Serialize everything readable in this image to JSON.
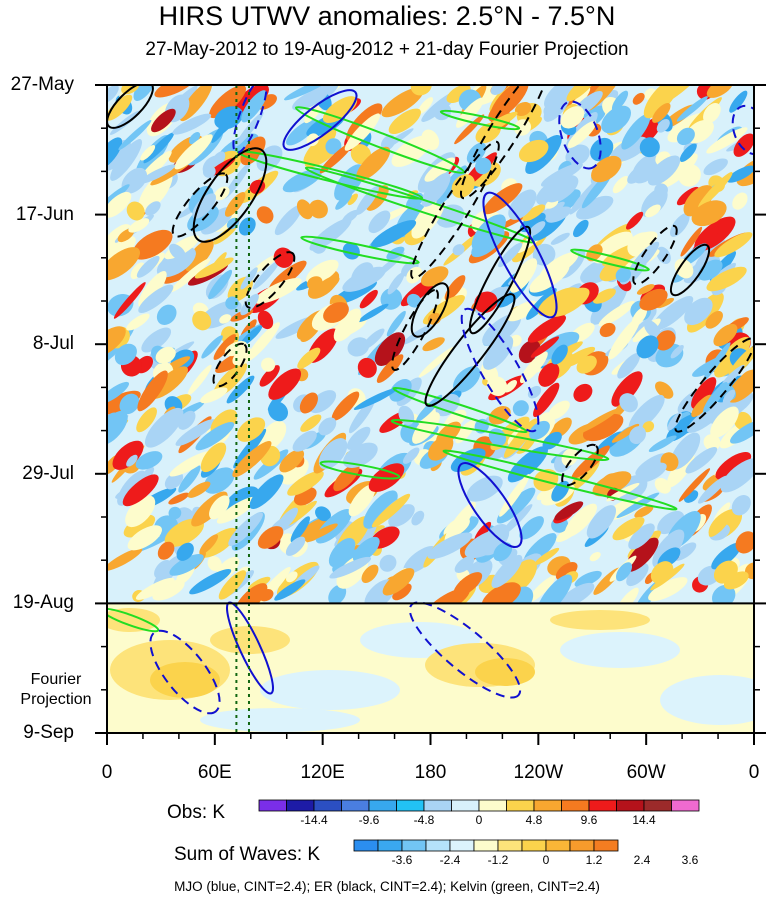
{
  "chart_data": {
    "type": "heatmap",
    "title": "HIRS UTWV anomalies: 2.5°N - 7.5°N",
    "subtitle": "27-May-2012 to 19-Aug-2012 + 21-day Fourier Projection",
    "x_ticks": [
      "0",
      "60E",
      "120E",
      "180",
      "120W",
      "60W",
      "0"
    ],
    "x_tick_values": [
      0,
      60,
      120,
      180,
      240,
      300,
      360
    ],
    "xlim": [
      0,
      360
    ],
    "y_ticks": [
      "27-May",
      "17-Jun",
      "8-Jul",
      "29-Jul",
      "19-Aug",
      "9-Sep"
    ],
    "y_tick_days": [
      0,
      21,
      42,
      63,
      84,
      105
    ],
    "ylim_days": [
      0,
      105
    ],
    "observation_end_day": 84,
    "projection_label": "Fourier Projection",
    "obs_colorbar": {
      "label": "Obs: K",
      "tick_labels": [
        "-14.4",
        "-9.6",
        "-4.8",
        "0",
        "4.8",
        "9.6",
        "14.4"
      ],
      "colors": [
        "#7a2ee8",
        "#1d1ba6",
        "#2b4fc2",
        "#4a7ee0",
        "#37a8ee",
        "#22c2f5",
        "#a9d4f5",
        "#d8f1fb",
        "#fdfccc",
        "#fbd34c",
        "#f8a730",
        "#f57a20",
        "#ee1b1b",
        "#b5121b",
        "#9c2a2a",
        "#f06ad0"
      ]
    },
    "waves_colorbar": {
      "label": "Sum of Waves: K",
      "tick_labels": [
        "-3.6",
        "-2.4",
        "-1.2",
        "0",
        "1.2",
        "2.4",
        "3.6"
      ],
      "colors": [
        "#2b8ef0",
        "#3aa8f0",
        "#72c5f5",
        "#b5e2fa",
        "#dcf3fc",
        "#fdfccc",
        "#fde37a",
        "#fbd34c",
        "#f9b637",
        "#f79b2c",
        "#f47d21"
      ]
    },
    "contours": {
      "MJO": {
        "color": "#1010d0",
        "cint": 2.4
      },
      "ER": {
        "color": "#000000",
        "cint": 2.4
      },
      "Kelvin": {
        "color": "#22dd22",
        "cint": 2.4
      }
    },
    "reference_lines_lon": [
      72,
      79
    ]
  },
  "footnote": "MJO (blue, CINT=2.4); ER (black, CINT=2.4); Kelvin (green, CINT=2.4)"
}
